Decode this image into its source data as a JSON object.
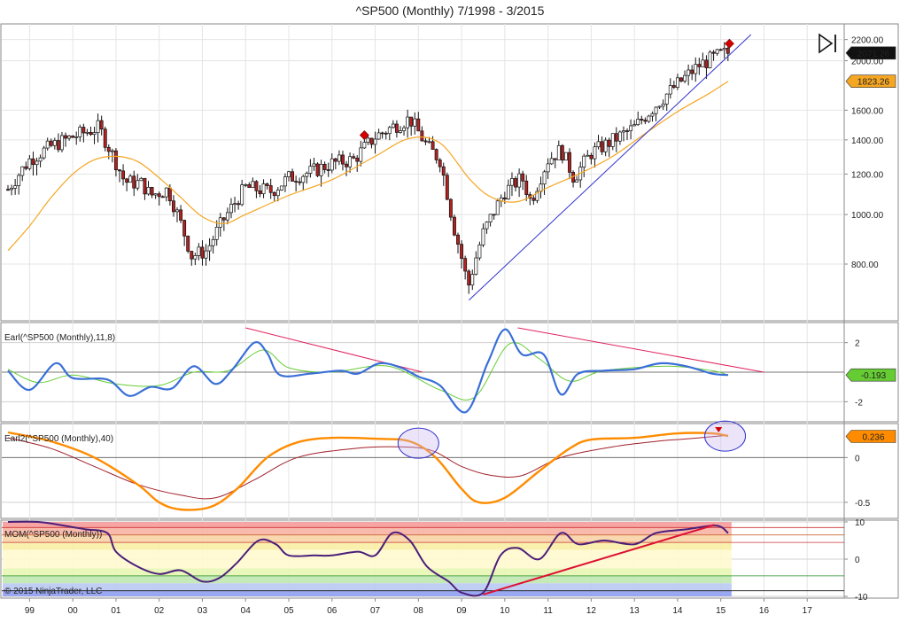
{
  "title": "^SP500 (Monthly)  7/1998 - 3/2015",
  "copyright": "© 2015 NinjaTrader, LLC",
  "colors": {
    "up_candle": "#ffffff",
    "down_candle": "#b22222",
    "ma": "#f5a623",
    "trendline": "#3333cc",
    "earl_fast": "#3a6fd8",
    "earl_slow": "#66cc33",
    "earl_divergence": "#e0245e",
    "earl2_fast": "#ff8c00",
    "earl2_slow": "#a0202a",
    "mom_line": "#4b1f7a",
    "mom_trend": "#dd1133",
    "signal": "#d40000"
  },
  "chart_data": [
    {
      "type": "candlestick",
      "name": "price",
      "title": "^SP500 (Monthly)  7/1998 - 3/2015",
      "scale": "log",
      "ylim": [
        650,
        2250
      ],
      "y_ticks": [
        "2200.00",
        "2000.00",
        "1600.00",
        "1400.00",
        "1200.00",
        "1000.00",
        "800.00"
      ],
      "y_tick_values": [
        2200,
        2000,
        1600,
        1400,
        1200,
        1000,
        800
      ],
      "x_ticks": [
        "99",
        "00",
        "01",
        "02",
        "03",
        "04",
        "05",
        "06",
        "07",
        "08",
        "09",
        "10",
        "11",
        "12",
        "13",
        "14",
        "15",
        "16",
        "17"
      ],
      "last_price_label": "2071.26",
      "ma_label": "1823.26",
      "close_path": [
        [
          1998.5,
          1120
        ],
        [
          1999.0,
          1280
        ],
        [
          1999.5,
          1360
        ],
        [
          2000.0,
          1420
        ],
        [
          2000.6,
          1480
        ],
        [
          2000.9,
          1320
        ],
        [
          2001.2,
          1160
        ],
        [
          2001.6,
          1150
        ],
        [
          2001.8,
          1090
        ],
        [
          2002.2,
          1120
        ],
        [
          2002.5,
          960
        ],
        [
          2002.75,
          830
        ],
        [
          2003.1,
          850
        ],
        [
          2003.5,
          980
        ],
        [
          2004.0,
          1130
        ],
        [
          2004.6,
          1110
        ],
        [
          2005.0,
          1180
        ],
        [
          2005.5,
          1210
        ],
        [
          2006.0,
          1260
        ],
        [
          2006.5,
          1280
        ],
        [
          2007.0,
          1420
        ],
        [
          2007.5,
          1500
        ],
        [
          2007.8,
          1540
        ],
        [
          2008.2,
          1360
        ],
        [
          2008.5,
          1280
        ],
        [
          2008.8,
          960
        ],
        [
          2009.15,
          720
        ],
        [
          2009.5,
          920
        ],
        [
          2010.0,
          1110
        ],
        [
          2010.4,
          1180
        ],
        [
          2010.6,
          1060
        ],
        [
          2011.0,
          1280
        ],
        [
          2011.3,
          1340
        ],
        [
          2011.6,
          1180
        ],
        [
          2012.0,
          1320
        ],
        [
          2012.4,
          1380
        ],
        [
          2013.0,
          1480
        ],
        [
          2013.5,
          1640
        ],
        [
          2014.0,
          1800
        ],
        [
          2014.5,
          1960
        ],
        [
          2015.0,
          2060
        ],
        [
          2015.17,
          2071
        ]
      ],
      "ma_path": [
        [
          1998.5,
          850
        ],
        [
          1999.0,
          950
        ],
        [
          1999.5,
          1080
        ],
        [
          2000.0,
          1200
        ],
        [
          2000.5,
          1280
        ],
        [
          2001.0,
          1300
        ],
        [
          2001.5,
          1270
        ],
        [
          2002.0,
          1180
        ],
        [
          2002.5,
          1080
        ],
        [
          2003.0,
          990
        ],
        [
          2003.5,
          960
        ],
        [
          2004.0,
          1000
        ],
        [
          2005.0,
          1090
        ],
        [
          2006.0,
          1170
        ],
        [
          2007.0,
          1300
        ],
        [
          2007.8,
          1410
        ],
        [
          2008.5,
          1380
        ],
        [
          2009.2,
          1170
        ],
        [
          2009.7,
          1080
        ],
        [
          2010.3,
          1060
        ],
        [
          2011.0,
          1130
        ],
        [
          2011.8,
          1210
        ],
        [
          2012.5,
          1300
        ],
        [
          2013.3,
          1450
        ],
        [
          2014.0,
          1590
        ],
        [
          2014.7,
          1720
        ],
        [
          2015.17,
          1823
        ]
      ],
      "trendlines": [
        [
          [
            2009.17,
            680
          ],
          [
            2015.7,
            2250
          ]
        ]
      ],
      "signals": [
        {
          "x": 2006.75,
          "y": 1430
        },
        {
          "x": 2015.2,
          "y": 2160
        }
      ]
    },
    {
      "type": "line",
      "name": "Earl",
      "label": "Earl(^SP500 (Monthly),11,8)",
      "ylim": [
        -3.0,
        3.0
      ],
      "y_ticks": [
        "2",
        "-2"
      ],
      "y_tick_values": [
        2,
        -2
      ],
      "last_value_label": "-0.193",
      "series": [
        {
          "name": "fast",
          "values": [
            [
              1998.5,
              0.1
            ],
            [
              1999.0,
              -1.2
            ],
            [
              1999.6,
              0.6
            ],
            [
              2000.0,
              -0.4
            ],
            [
              2000.8,
              -0.5
            ],
            [
              2001.3,
              -1.6
            ],
            [
              2001.8,
              -1.0
            ],
            [
              2002.3,
              -1.1
            ],
            [
              2002.8,
              0.4
            ],
            [
              2003.3,
              -0.8
            ],
            [
              2003.7,
              0.2
            ],
            [
              2004.2,
              2.0
            ],
            [
              2004.5,
              1.3
            ],
            [
              2004.8,
              -0.2
            ],
            [
              2005.5,
              -0.1
            ],
            [
              2006.2,
              0.1
            ],
            [
              2006.6,
              -0.1
            ],
            [
              2007.1,
              0.6
            ],
            [
              2007.6,
              0.3
            ],
            [
              2008.0,
              -0.3
            ],
            [
              2008.5,
              -0.9
            ],
            [
              2009.1,
              -2.7
            ],
            [
              2009.6,
              0.6
            ],
            [
              2010.0,
              2.9
            ],
            [
              2010.4,
              1.2
            ],
            [
              2010.9,
              1.2
            ],
            [
              2011.3,
              -1.5
            ],
            [
              2011.7,
              -0.1
            ],
            [
              2012.3,
              0.1
            ],
            [
              2013.0,
              0.2
            ],
            [
              2013.6,
              0.6
            ],
            [
              2014.2,
              0.4
            ],
            [
              2014.8,
              -0.1
            ],
            [
              2015.17,
              -0.19
            ]
          ]
        },
        {
          "name": "slow",
          "values": [
            [
              1998.5,
              0.2
            ],
            [
              1999.2,
              -0.7
            ],
            [
              2000.0,
              -0.2
            ],
            [
              2001.0,
              -0.8
            ],
            [
              2002.0,
              -0.9
            ],
            [
              2002.8,
              0.0
            ],
            [
              2003.6,
              0.1
            ],
            [
              2004.4,
              1.5
            ],
            [
              2005.0,
              0.3
            ],
            [
              2006.0,
              0.0
            ],
            [
              2007.3,
              0.4
            ],
            [
              2008.5,
              -1.2
            ],
            [
              2009.3,
              -1.7
            ],
            [
              2010.1,
              1.9
            ],
            [
              2010.8,
              0.9
            ],
            [
              2011.5,
              -0.6
            ],
            [
              2012.3,
              0.1
            ],
            [
              2013.8,
              0.4
            ],
            [
              2014.8,
              0.1
            ],
            [
              2015.17,
              -0.2
            ]
          ]
        }
      ],
      "divergence_lines": [
        [
          [
            2004.0,
            3.0
          ],
          [
            2008.1,
            0.0
          ]
        ],
        [
          [
            2010.3,
            3.0
          ],
          [
            2016.0,
            0.0
          ]
        ]
      ]
    },
    {
      "type": "line",
      "name": "Earl2",
      "label": "Earl2(^SP500 (Monthly),40)",
      "ylim": [
        -0.62,
        0.32
      ],
      "y_ticks": [
        "0",
        "-0.5"
      ],
      "y_tick_values": [
        0,
        -0.5
      ],
      "last_value_label": "0.236",
      "series": [
        {
          "name": "fast",
          "values": [
            [
              1998.5,
              0.28
            ],
            [
              1999.5,
              0.18
            ],
            [
              2000.5,
              0.0
            ],
            [
              2001.5,
              -0.3
            ],
            [
              2002.0,
              -0.5
            ],
            [
              2002.5,
              -0.58
            ],
            [
              2003.2,
              -0.55
            ],
            [
              2003.8,
              -0.35
            ],
            [
              2004.5,
              0.0
            ],
            [
              2005.2,
              0.17
            ],
            [
              2006.0,
              0.22
            ],
            [
              2007.0,
              0.21
            ],
            [
              2007.8,
              0.18
            ],
            [
              2008.4,
              0.0
            ],
            [
              2009.0,
              -0.35
            ],
            [
              2009.4,
              -0.5
            ],
            [
              2010.0,
              -0.45
            ],
            [
              2010.8,
              -0.15
            ],
            [
              2011.5,
              0.1
            ],
            [
              2012.0,
              0.2
            ],
            [
              2013.0,
              0.22
            ],
            [
              2014.0,
              0.27
            ],
            [
              2014.8,
              0.27
            ],
            [
              2015.17,
              0.24
            ]
          ]
        },
        {
          "name": "slow",
          "values": [
            [
              1998.5,
              0.22
            ],
            [
              1999.5,
              0.1
            ],
            [
              2000.5,
              -0.1
            ],
            [
              2001.5,
              -0.3
            ],
            [
              2002.5,
              -0.42
            ],
            [
              2003.3,
              -0.45
            ],
            [
              2004.2,
              -0.25
            ],
            [
              2005.2,
              0.0
            ],
            [
              2006.5,
              0.1
            ],
            [
              2007.5,
              0.12
            ],
            [
              2008.3,
              0.08
            ],
            [
              2009.0,
              -0.1
            ],
            [
              2009.7,
              -0.2
            ],
            [
              2010.4,
              -0.2
            ],
            [
              2011.3,
              0.0
            ],
            [
              2012.5,
              0.12
            ],
            [
              2013.5,
              0.18
            ],
            [
              2014.5,
              0.22
            ],
            [
              2015.17,
              0.25
            ]
          ]
        }
      ],
      "circles": [
        {
          "x": 2008.0,
          "y": 0.16
        },
        {
          "x": 2015.1,
          "y": 0.24
        }
      ],
      "signals": [
        {
          "x": 2014.95,
          "y": 0.31
        }
      ]
    },
    {
      "type": "line",
      "name": "MOM",
      "label": "MOM(^SP500 (Monthly))",
      "ylim": [
        -10,
        10
      ],
      "y_ticks": [
        "10",
        "0",
        "-10"
      ],
      "y_tick_values": [
        10,
        0,
        -10
      ],
      "series": [
        {
          "name": "momentum",
          "values": [
            [
              1998.5,
              10
            ],
            [
              1999.2,
              10
            ],
            [
              1999.8,
              9
            ],
            [
              2000.3,
              8
            ],
            [
              2000.8,
              7
            ],
            [
              2001.0,
              2
            ],
            [
              2001.5,
              -2
            ],
            [
              2002.0,
              -4
            ],
            [
              2002.5,
              -3
            ],
            [
              2003.0,
              -6
            ],
            [
              2003.4,
              -5
            ],
            [
              2003.8,
              -1
            ],
            [
              2004.3,
              5
            ],
            [
              2004.7,
              4
            ],
            [
              2005.0,
              1
            ],
            [
              2005.6,
              1
            ],
            [
              2006.0,
              1
            ],
            [
              2006.6,
              2
            ],
            [
              2007.0,
              1
            ],
            [
              2007.4,
              7
            ],
            [
              2007.8,
              5
            ],
            [
              2008.2,
              -2
            ],
            [
              2008.7,
              -6
            ],
            [
              2009.0,
              -9
            ],
            [
              2009.5,
              -9
            ],
            [
              2009.9,
              1
            ],
            [
              2010.3,
              3
            ],
            [
              2010.8,
              0
            ],
            [
              2011.3,
              7
            ],
            [
              2011.7,
              4
            ],
            [
              2012.3,
              5
            ],
            [
              2013.0,
              4
            ],
            [
              2013.5,
              7
            ],
            [
              2014.2,
              8
            ],
            [
              2014.9,
              9
            ],
            [
              2015.17,
              7
            ]
          ]
        }
      ],
      "trendlines": [
        [
          [
            2009.5,
            -9.5
          ],
          [
            2014.85,
            9.2
          ]
        ]
      ]
    }
  ]
}
